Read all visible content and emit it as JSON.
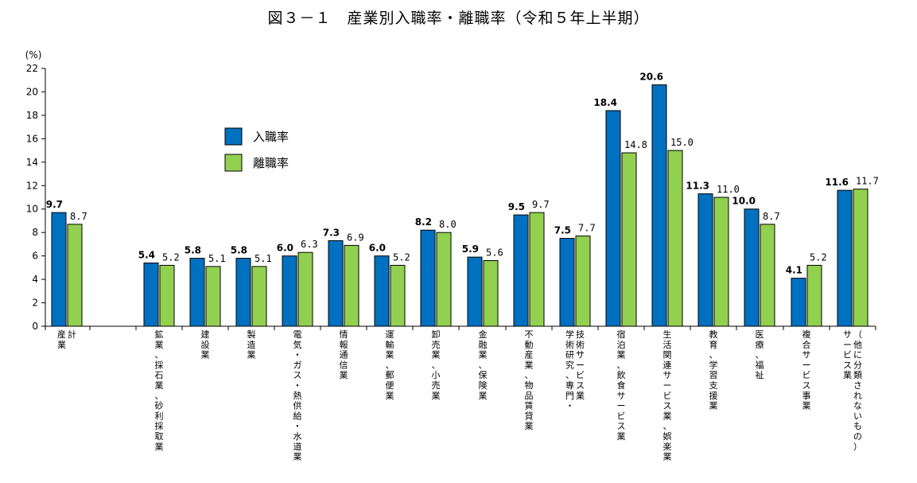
{
  "title": "図３－１　産業別入職率・離職率（令和５年上半期）",
  "chart_data": {
    "type": "bar",
    "title": "図３－１　産業別入職率・離職率（令和５年上半期）",
    "ylabel": "(%)",
    "ylim": [
      0,
      22
    ],
    "yticks": [
      0,
      2,
      4,
      6,
      8,
      10,
      12,
      14,
      16,
      18,
      20,
      22
    ],
    "grid": false,
    "legend_position": "upper-left",
    "categories": [
      [
        "産業",
        "計"
      ],
      [
        "鉱業、採石業、砂利採取業"
      ],
      [
        "建設業"
      ],
      [
        "製造業"
      ],
      [
        "電気・ガス・熱供給・水道業"
      ],
      [
        "情報通信業"
      ],
      [
        "運輸業、郵便業"
      ],
      [
        "卸売業、小売業"
      ],
      [
        "金融業、保険業"
      ],
      [
        "不動産業、物品賃貸業"
      ],
      [
        "学術研究、専門・",
        "技術サービス業"
      ],
      [
        "宿泊業、飲食サービス業"
      ],
      [
        "生活関連サービス業、娯楽業"
      ],
      [
        "教育、学習支援業"
      ],
      [
        "医療、福祉"
      ],
      [
        "複合サービス事業"
      ],
      [
        "サービス業",
        "（他に分類されないもの）"
      ]
    ],
    "series": [
      {
        "name": "入職率",
        "color": "#0070c0",
        "values": [
          9.7,
          5.4,
          5.8,
          5.8,
          6.0,
          7.3,
          6.0,
          8.2,
          5.9,
          9.5,
          7.5,
          18.4,
          20.6,
          11.3,
          10.0,
          4.1,
          11.6
        ],
        "labels": [
          "9.7",
          "5.4",
          "5.8",
          "5.8",
          "6.0",
          "7.3",
          "6.0",
          "8.2",
          "5.9",
          "9.5",
          "7.5",
          "18.4",
          "20.6",
          "11.3",
          "10.0",
          "4.1",
          "11.6"
        ]
      },
      {
        "name": "離職率",
        "color": "#92d050",
        "values": [
          8.7,
          5.2,
          5.1,
          5.1,
          6.3,
          6.9,
          5.2,
          8.0,
          5.6,
          9.7,
          7.7,
          14.8,
          15.0,
          11.0,
          8.7,
          5.2,
          11.7
        ],
        "labels": [
          "8.7",
          "5.2",
          "5.1",
          "5.1",
          "6.3",
          "6.9",
          "5.2",
          "8.0",
          "5.6",
          "9.7",
          "7.7",
          "14.8",
          "15.0",
          "11.0",
          "8.7",
          "5.2",
          "11.7"
        ]
      }
    ]
  }
}
